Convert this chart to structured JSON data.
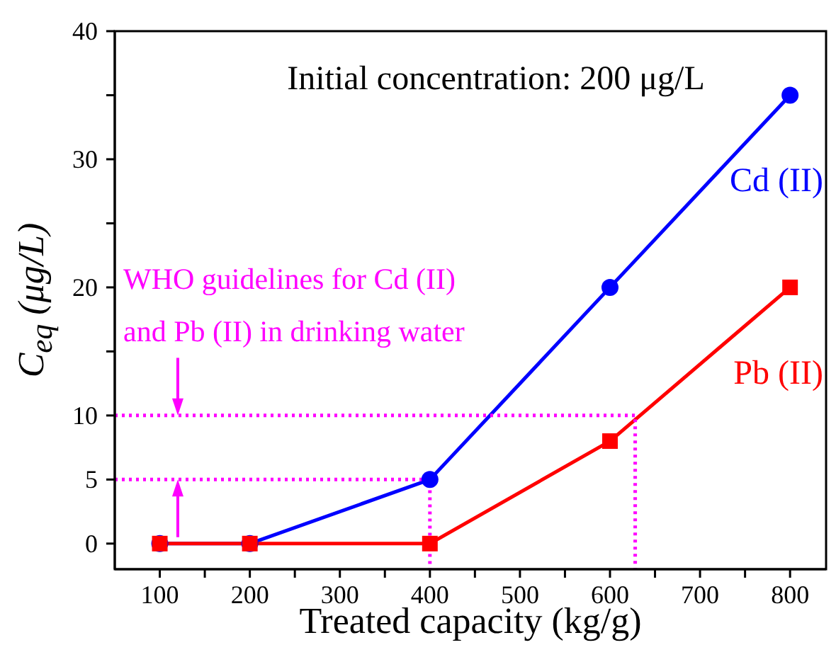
{
  "chart_data": {
    "type": "line",
    "xlabel": "Treated capacity (kg/g)",
    "ylabel": "C$_{eq}$ (μg/L)",
    "xlim": [
      50,
      840
    ],
    "xticks": [
      100,
      {
        "value": 150,
        "label": null
      },
      200,
      {
        "value": 250,
        "label": null
      },
      300,
      {
        "value": 350,
        "label": null
      },
      400,
      {
        "value": 450,
        "label": null
      },
      500,
      {
        "value": 550,
        "label": null
      },
      600,
      {
        "value": 650,
        "label": null
      },
      700,
      {
        "value": 750,
        "label": null
      },
      800
    ],
    "ylim": [
      -2,
      40
    ],
    "yticks": [
      0,
      5,
      10,
      {
        "value": 15,
        "label": null
      },
      20,
      {
        "value": 25,
        "label": null
      },
      30,
      {
        "value": 35,
        "label": null
      },
      40
    ],
    "series": [
      {
        "name": "Cd (II)",
        "color": "#0000ff",
        "marker": "circle",
        "line_style": "solid",
        "x": [
          100,
          200,
          400,
          600,
          800
        ],
        "values": [
          0,
          0,
          5,
          20,
          35
        ]
      },
      {
        "name": "Pb (II)",
        "color": "#ff0000",
        "marker": "square",
        "line_style": "solid",
        "x": [
          100,
          200,
          400,
          600,
          800
        ],
        "values": [
          0,
          0,
          0,
          8,
          20
        ]
      },
      {
        "color": "#ff00ff",
        "marker": "none",
        "line_style": "dotted",
        "x": [
          50,
          628,
          628
        ],
        "values": [
          10,
          10,
          -2
        ]
      },
      {
        "color": "#ff00ff",
        "marker": "none",
        "line_style": "dotted",
        "x": [
          50,
          400,
          400
        ],
        "values": [
          5,
          5,
          -2
        ]
      }
    ],
    "annotations": [
      "Initial concentration: 200 μg/L",
      "WHO guidelines for Cd (II)",
      "and Pb (II) in drinking water"
    ]
  }
}
